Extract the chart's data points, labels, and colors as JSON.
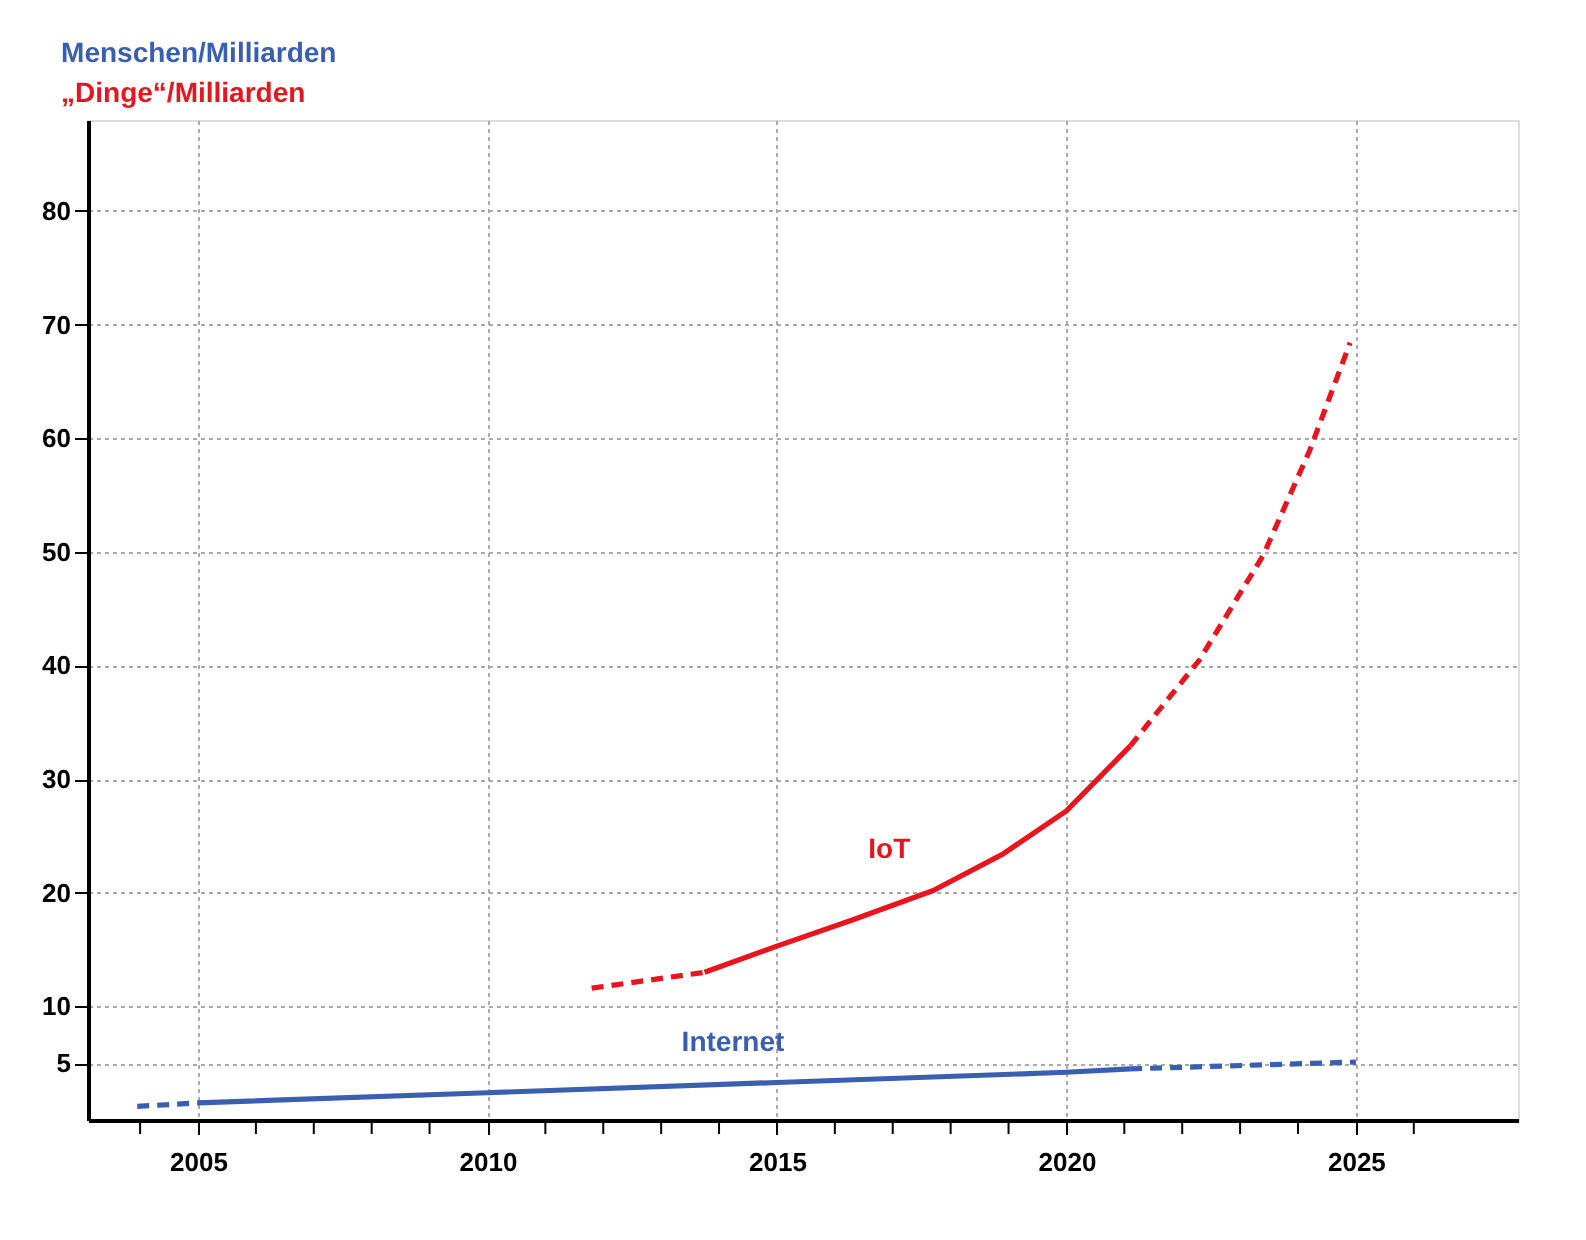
{
  "chart_data": {
    "type": "line",
    "title": "Menschen/Milliarden",
    "subtitle": "„Dinge“/Milliarden",
    "xlim": [
      2003.1,
      2027.8
    ],
    "ylim": [
      0,
      88
    ],
    "xticks": [
      {
        "value": 2004,
        "label": null
      },
      2005,
      {
        "value": 2006,
        "label": null
      },
      {
        "value": 2007,
        "label": null
      },
      {
        "value": 2008,
        "label": null
      },
      {
        "value": 2009,
        "label": null
      },
      2010,
      {
        "value": 2011,
        "label": null
      },
      {
        "value": 2012,
        "label": null
      },
      {
        "value": 2013,
        "label": null
      },
      {
        "value": 2014,
        "label": null
      },
      2015,
      {
        "value": 2016,
        "label": null
      },
      {
        "value": 2017,
        "label": null
      },
      {
        "value": 2018,
        "label": null
      },
      {
        "value": 2019,
        "label": null
      },
      2020,
      {
        "value": 2021,
        "label": null
      },
      {
        "value": 2022,
        "label": null
      },
      {
        "value": 2023,
        "label": null
      },
      {
        "value": 2024,
        "label": null
      },
      2025,
      {
        "value": 2026,
        "label": null
      }
    ],
    "yticks": [
      5,
      10,
      20,
      30,
      40,
      50,
      60,
      70,
      80
    ],
    "grid": true,
    "marker": "none",
    "series": [
      {
        "color": "#3a5fb0",
        "line_style": "dashed",
        "x": [
          2003.95,
          2005
        ],
        "values": [
          1.2,
          1.5
        ]
      },
      {
        "name": "Internet",
        "color": "#3a5fb0",
        "line_style": "solid",
        "x": [
          2005,
          2010,
          2015,
          2020,
          2021.1
        ],
        "values": [
          1.5,
          2.4,
          3.3,
          4.2,
          4.5
        ]
      },
      {
        "color": "#3a5fb0",
        "line_style": "dashed",
        "x": [
          2021.1,
          2025
        ],
        "values": [
          4.5,
          5.1
        ]
      },
      {
        "color": "#e8141e",
        "line_style": "dashed",
        "x": [
          2011.8,
          2013.75
        ],
        "values": [
          11.6,
          13.0
        ]
      },
      {
        "name": "IoT",
        "color": "#e8141e",
        "line_style": "solid",
        "x": [
          2013.75,
          2015,
          2016.3,
          2017.7,
          2018.9,
          2020,
          2021.1
        ],
        "values": [
          13.0,
          15.3,
          17.6,
          20.2,
          23.4,
          27.2,
          32.9
        ]
      },
      {
        "color": "#e8141e",
        "line_style": "dashed",
        "x": [
          2021.1,
          2022.3,
          2023.4,
          2024.2,
          2024.9
        ],
        "values": [
          32.9,
          40.5,
          49.7,
          58.9,
          68.4
        ]
      }
    ]
  }
}
